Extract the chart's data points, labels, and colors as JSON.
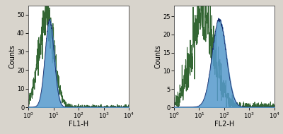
{
  "fig_width": 4.0,
  "fig_height": 1.9,
  "dpi": 100,
  "background_color": "#d8d4cc",
  "axes_bg": "#ffffff",
  "plot1": {
    "xlabel": "FL1-H",
    "ylabel": "Counts",
    "ylim": [
      0,
      55
    ],
    "yticks": [
      0,
      10,
      20,
      30,
      40,
      50
    ],
    "isotype_peak_log": 0.72,
    "isotype_peak_count": 50,
    "isotype_spread": 0.3,
    "sample_peak_log": 0.85,
    "sample_peak_count": 47,
    "sample_spread": 0.18,
    "blue_color": "#5599cc",
    "blue_edge_color": "#1a2a6a",
    "green_color": "#336633"
  },
  "plot2": {
    "xlabel": "FL2-H",
    "ylabel": "Counts",
    "ylim": [
      0,
      28
    ],
    "yticks": [
      0,
      5,
      10,
      15,
      20,
      25
    ],
    "isotype_peak_log": 1.15,
    "isotype_peak_count": 26,
    "isotype_spread": 0.45,
    "sample_peak_log": 1.8,
    "sample_peak_count": 24,
    "sample_spread": 0.28,
    "blue_color": "#5599cc",
    "blue_edge_color": "#1a2a6a",
    "green_color": "#336633"
  }
}
